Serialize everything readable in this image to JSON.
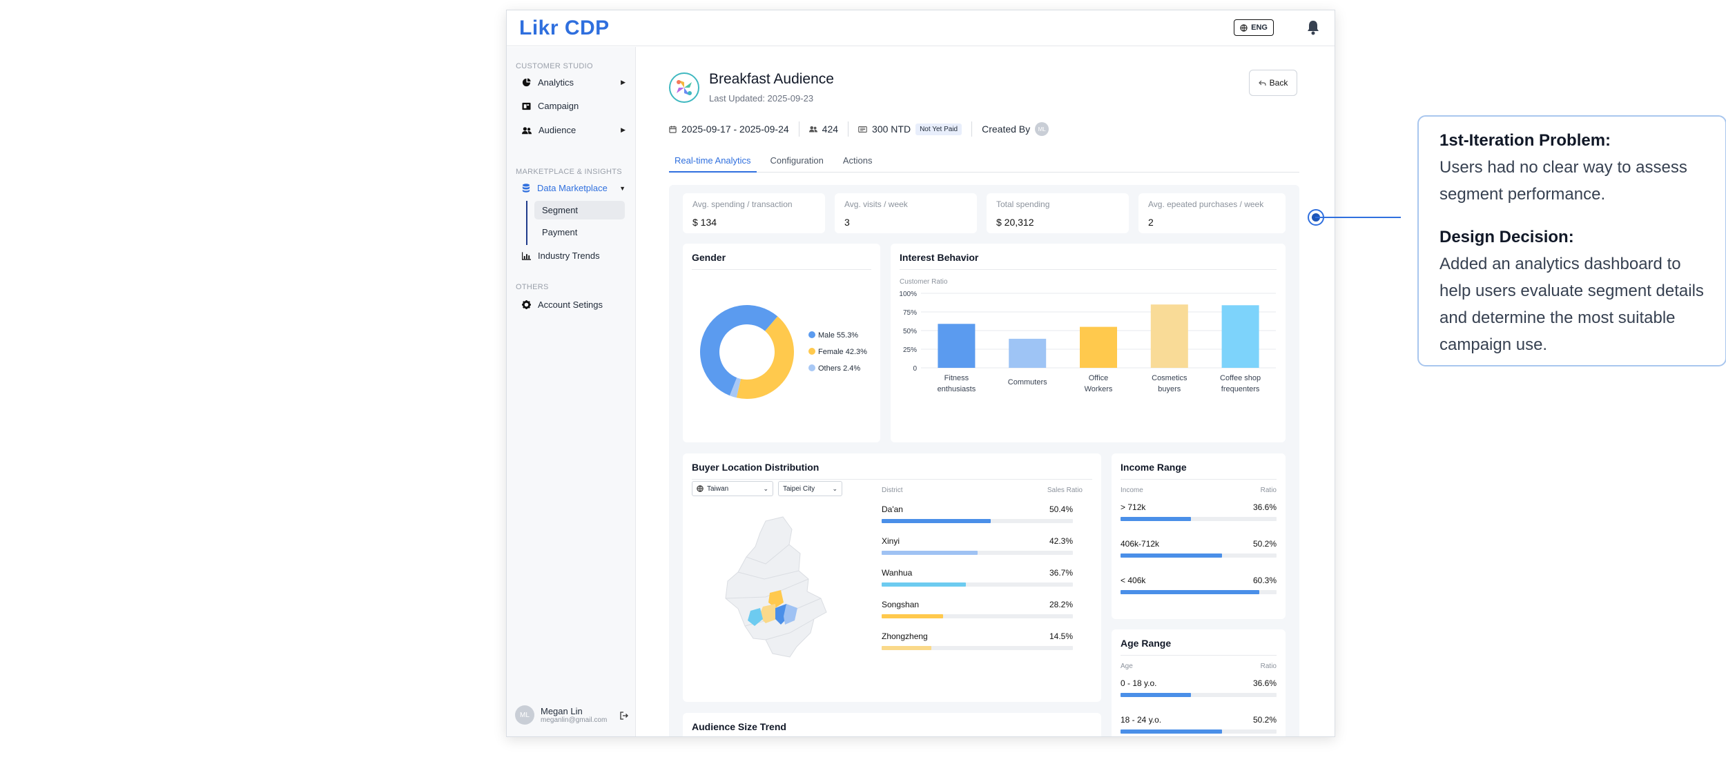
{
  "app": {
    "logo": "Likr CDP",
    "lang": "ENG"
  },
  "sidebar": {
    "section_studio": "CUSTOMER STUDIO",
    "analytics": "Analytics",
    "campaign": "Campaign",
    "audience": "Audience",
    "section_market": "MARKETPLACE & INSIGHTS",
    "data_marketplace": "Data Marketplace",
    "segment": "Segment",
    "payment": "Payment",
    "industry_trends": "Industry Trends",
    "section_others": "OTHERS",
    "account_settings": "Account Setings",
    "user_initials": "ML",
    "user_name": "Megan Lin",
    "user_email": "meganlin@gmail.com"
  },
  "segment": {
    "title": "Breakfast Audience",
    "updated": "Last Updated: 2025-09-23",
    "back": "Back",
    "date_range": "2025-09-17 - 2025-09-24",
    "audience_count": "424",
    "price": "300 NTD",
    "payment_status": "Not Yet Paid",
    "created_by": "Created By",
    "creator_initials": "ML"
  },
  "tabs": [
    "Real-time Analytics",
    "Configuration",
    "Actions"
  ],
  "kpis": [
    {
      "label": "Avg. spending / transaction",
      "value": "$ 134"
    },
    {
      "label": "Avg. visits / week",
      "value": "3"
    },
    {
      "label": "Total spending",
      "value": "$ 20,312"
    },
    {
      "label": "Avg. epeated purchases / week",
      "value": "2"
    }
  ],
  "gender": {
    "title": "Gender",
    "legend": [
      "Male 55.3%",
      "Female 42.3%",
      "Others 2.4%"
    ],
    "colors": [
      "#5b9bef",
      "#ffc94d",
      "#a8c8f5"
    ]
  },
  "interest": {
    "title": "Interest Behavior",
    "axis_title": "Customer Ratio",
    "ticks": [
      "100%",
      "75%",
      "50%",
      "25%",
      "0"
    ],
    "labels": [
      [
        "Fitness",
        "enthusiasts"
      ],
      [
        "Commuters"
      ],
      [
        "Office",
        "Workers"
      ],
      [
        "Cosmetics",
        "buyers"
      ],
      [
        "Coffee shop",
        "frequenters"
      ]
    ]
  },
  "location": {
    "title": "Buyer Location Distribution",
    "country": "Taiwan",
    "city": "Taipei City",
    "col_district": "District",
    "col_ratio": "Sales Ratio",
    "rows": [
      {
        "name": "Da'an",
        "value": "50.4%",
        "pct": 0.57,
        "color": "#4a8fe8"
      },
      {
        "name": "Xinyi",
        "value": "42.3%",
        "pct": 0.5,
        "color": "#9fc2f3"
      },
      {
        "name": "Wanhua",
        "value": "36.7%",
        "pct": 0.44,
        "color": "#6dcbf0"
      },
      {
        "name": "Songshan",
        "value": "28.2%",
        "pct": 0.32,
        "color": "#ffc94d"
      },
      {
        "name": "Zhongzheng",
        "value": "14.5%",
        "pct": 0.26,
        "color": "#fad98a"
      }
    ]
  },
  "income": {
    "title": "Income Range",
    "col_a": "Income",
    "col_b": "Ratio",
    "rows": [
      {
        "name": "> 712k",
        "value": "36.6%",
        "pct": 0.45
      },
      {
        "name": "406k-712k",
        "value": "50.2%",
        "pct": 0.65
      },
      {
        "name": "< 406k",
        "value": "60.3%",
        "pct": 0.89
      }
    ]
  },
  "age": {
    "title": "Age Range",
    "col_a": "Age",
    "col_b": "Ratio",
    "rows": [
      {
        "name": "0 - 18 y.o.",
        "value": "36.6%",
        "pct": 0.45
      },
      {
        "name": "18 - 24 y.o.",
        "value": "50.2%",
        "pct": 0.65
      }
    ]
  },
  "trend": {
    "title": "Audience Size Trend"
  },
  "note": {
    "problem_title": "1st-Iteration Problem:",
    "problem_text": "Users had no clear way to assess segment performance.",
    "decision_title": "Design Decision:",
    "decision_text": "Added an analytics dashboard to help users evaluate segment details and determine the most suitable campaign use."
  },
  "chart_data": [
    {
      "type": "pie",
      "title": "Gender",
      "categories": [
        "Male",
        "Female",
        "Others"
      ],
      "values": [
        55.3,
        42.3,
        2.4
      ]
    },
    {
      "type": "bar",
      "title": "Interest Behavior",
      "ylabel": "Customer Ratio",
      "categories": [
        "Fitness enthusiasts",
        "Commuters",
        "Office Workers",
        "Cosmetics buyers",
        "Coffee shop frequenters"
      ],
      "values": [
        59,
        39,
        55,
        85,
        84
      ],
      "colors": [
        "#5b9bef",
        "#9ec4f5",
        "#ffc94d",
        "#f9db97",
        "#7dd3fb"
      ],
      "ylim": [
        0,
        100
      ],
      "grid": true
    }
  ]
}
